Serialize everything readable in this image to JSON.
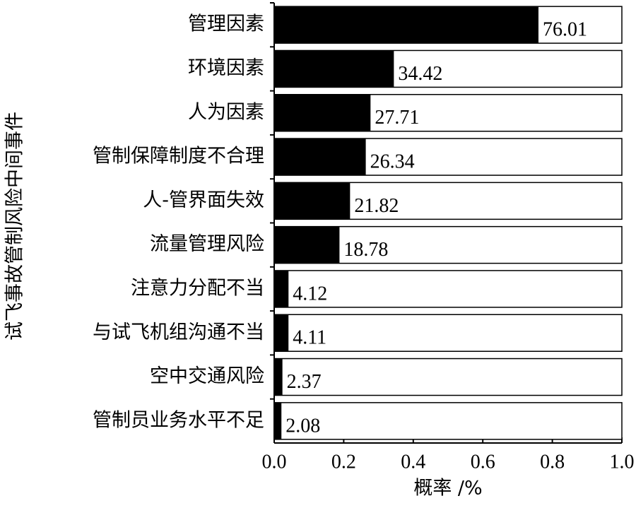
{
  "chart_data": {
    "type": "bar",
    "orientation": "horizontal",
    "y_label": "试飞事故管制风险中间事件",
    "x_label": "概率 /%",
    "categories": [
      "管理因素",
      "环境因素",
      "人为因素",
      "管制保障制度不合理",
      "人-管界面失效",
      "流量管理风险",
      "注意力分配不当",
      "与试飞机组沟通不当",
      "空中交通风险",
      "管制员业务水平不足"
    ],
    "values": [
      0.7601,
      0.3442,
      0.2771,
      0.2634,
      0.2182,
      0.1878,
      0.0412,
      0.0411,
      0.0237,
      0.0208
    ],
    "value_labels": [
      "76.01",
      "34.42",
      "27.71",
      "26.34",
      "21.82",
      "18.78",
      "4.12",
      "4.11",
      "2.37",
      "2.08"
    ],
    "color": "#000000",
    "xlim": [
      0,
      1
    ],
    "xticks": [
      {
        "value": 0,
        "label": "0.0"
      },
      0.2,
      0.4,
      0.6,
      0.8,
      {
        "value": 1,
        "label": "1.0"
      }
    ]
  }
}
